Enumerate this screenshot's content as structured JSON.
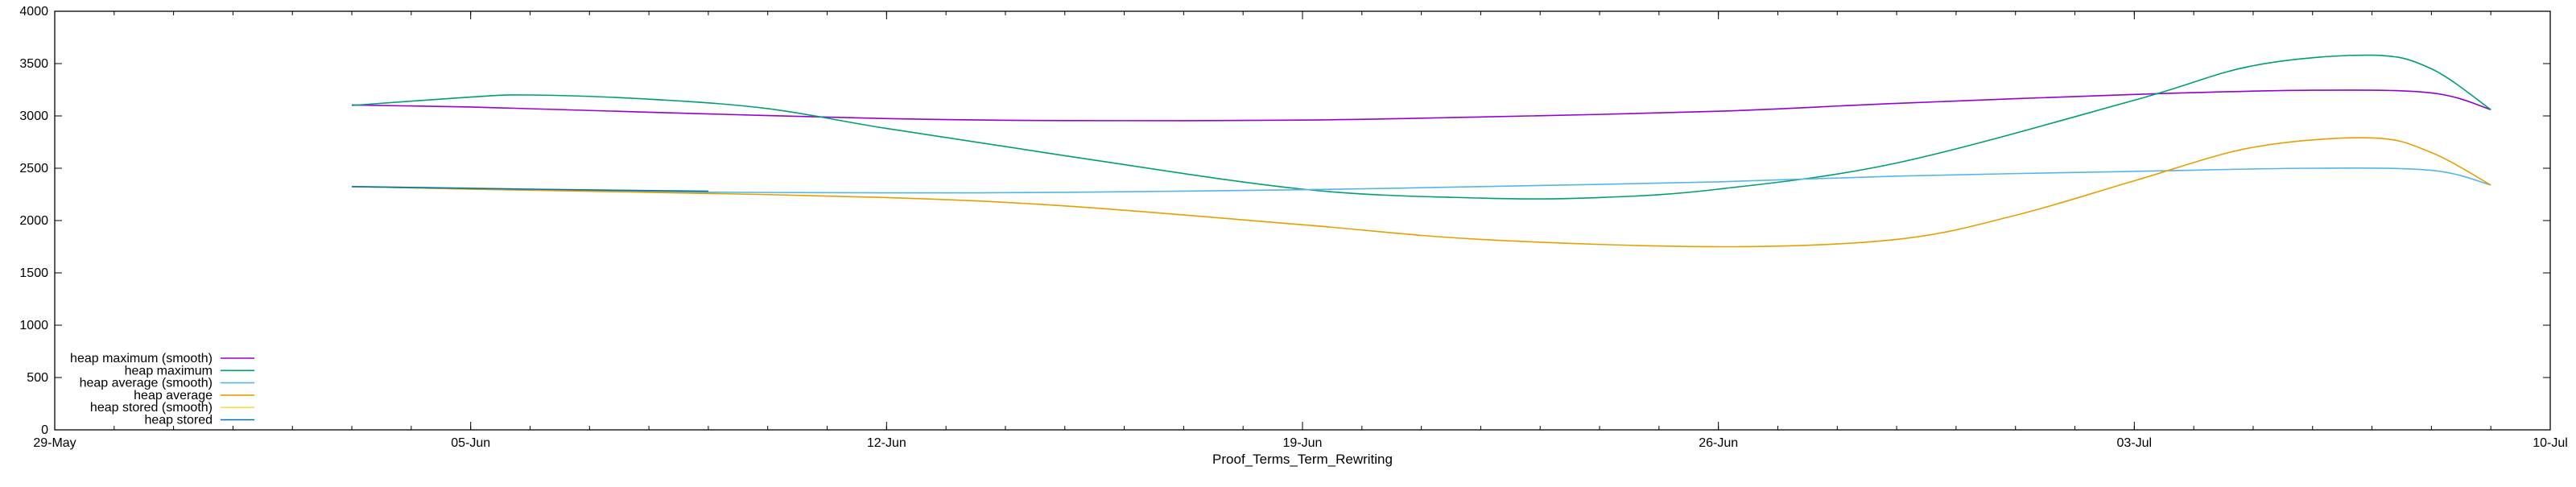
{
  "chart_data": {
    "type": "line",
    "title": "",
    "xlabel": "Proof_Terms_Term_Rewriting",
    "ylabel": "",
    "xlim": [
      "2023-05-29",
      "2023-07-10"
    ],
    "ylim": [
      0,
      4000
    ],
    "x_ticks": [
      {
        "date": "2023-05-29",
        "label": "29-May"
      },
      {
        "date": "2023-06-05",
        "label": "05-Jun"
      },
      {
        "date": "2023-06-12",
        "label": "12-Jun"
      },
      {
        "date": "2023-06-19",
        "label": "19-Jun"
      },
      {
        "date": "2023-06-26",
        "label": "26-Jun"
      },
      {
        "date": "2023-07-03",
        "label": "03-Jul"
      },
      {
        "date": "2023-07-10",
        "label": "10-Jul"
      }
    ],
    "y_ticks": [
      0,
      500,
      1000,
      1500,
      2000,
      2500,
      3000,
      3500,
      4000
    ],
    "grid": false,
    "legend_position": "bottom-left",
    "series": [
      {
        "name": "heap maximum (smooth)",
        "color": "#9400d3",
        "points": [
          [
            "2023-06-03",
            3105
          ],
          [
            "2023-06-05",
            3085
          ],
          [
            "2023-06-08",
            3035
          ],
          [
            "2023-06-12",
            2975
          ],
          [
            "2023-06-15",
            2955
          ],
          [
            "2023-06-19",
            2960
          ],
          [
            "2023-06-22",
            2990
          ],
          [
            "2023-06-26",
            3045
          ],
          [
            "2023-06-29",
            3120
          ],
          [
            "2023-07-03",
            3205
          ],
          [
            "2023-07-06",
            3245
          ],
          [
            "2023-07-08",
            3220
          ],
          [
            "2023-07-09",
            3060
          ]
        ]
      },
      {
        "name": "heap maximum",
        "color": "#009e73",
        "points": [
          [
            "2023-06-03",
            3100
          ],
          [
            "2023-06-05",
            3180
          ],
          [
            "2023-06-06",
            3200
          ],
          [
            "2023-06-08",
            3160
          ],
          [
            "2023-06-10",
            3070
          ],
          [
            "2023-06-12",
            2880
          ],
          [
            "2023-06-15",
            2620
          ],
          [
            "2023-06-19",
            2300
          ],
          [
            "2023-06-22",
            2215
          ],
          [
            "2023-06-24",
            2220
          ],
          [
            "2023-06-26",
            2300
          ],
          [
            "2023-06-29",
            2550
          ],
          [
            "2023-07-03",
            3150
          ],
          [
            "2023-07-05",
            3480
          ],
          [
            "2023-07-07",
            3580
          ],
          [
            "2023-07-08",
            3450
          ],
          [
            "2023-07-09",
            3060
          ]
        ]
      },
      {
        "name": "heap average (smooth)",
        "color": "#56b4e9",
        "points": [
          [
            "2023-06-03",
            2325
          ],
          [
            "2023-06-05",
            2300
          ],
          [
            "2023-06-08",
            2275
          ],
          [
            "2023-06-12",
            2265
          ],
          [
            "2023-06-15",
            2270
          ],
          [
            "2023-06-19",
            2295
          ],
          [
            "2023-06-22",
            2325
          ],
          [
            "2023-06-26",
            2370
          ],
          [
            "2023-06-29",
            2425
          ],
          [
            "2023-07-03",
            2470
          ],
          [
            "2023-07-06",
            2500
          ],
          [
            "2023-07-08",
            2480
          ],
          [
            "2023-07-09",
            2340
          ]
        ]
      },
      {
        "name": "heap average",
        "color": "#e69f00",
        "points": [
          [
            "2023-06-03",
            2325
          ],
          [
            "2023-06-05",
            2300
          ],
          [
            "2023-06-08",
            2270
          ],
          [
            "2023-06-12",
            2220
          ],
          [
            "2023-06-15",
            2140
          ],
          [
            "2023-06-19",
            1960
          ],
          [
            "2023-06-22",
            1820
          ],
          [
            "2023-06-26",
            1750
          ],
          [
            "2023-06-29",
            1820
          ],
          [
            "2023-07-01",
            2050
          ],
          [
            "2023-07-03",
            2380
          ],
          [
            "2023-07-05",
            2700
          ],
          [
            "2023-07-07",
            2790
          ],
          [
            "2023-07-08",
            2650
          ],
          [
            "2023-07-09",
            2340
          ]
        ]
      },
      {
        "name": "heap stored (smooth)",
        "color": "#f0e442",
        "points": [
          [
            "2023-06-03",
            2325
          ],
          [
            "2023-06-06",
            2300
          ],
          [
            "2023-06-09",
            2280
          ]
        ]
      },
      {
        "name": "heap stored",
        "color": "#0072b2",
        "points": [
          [
            "2023-06-03",
            2325
          ],
          [
            "2023-06-06",
            2300
          ],
          [
            "2023-06-09",
            2280
          ]
        ]
      }
    ]
  }
}
